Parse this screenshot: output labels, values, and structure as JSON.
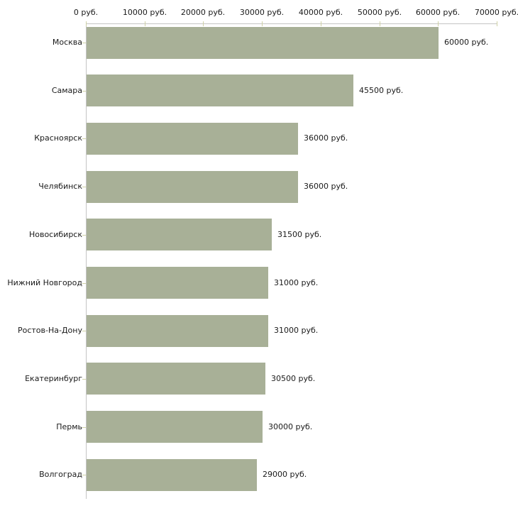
{
  "chart_data": {
    "type": "bar",
    "orientation": "horizontal",
    "title": "",
    "xlabel": "",
    "ylabel": "",
    "categories": [
      "Москва",
      "Самара",
      "Красноярск",
      "Челябинск",
      "Новосибирск",
      "Нижний Новгород",
      "Ростов-На-Дону",
      "Екатеринбург",
      "Пермь",
      "Волгоград"
    ],
    "values": [
      60000,
      45500,
      36000,
      36000,
      31500,
      31000,
      31000,
      30500,
      30000,
      29000
    ],
    "value_labels": [
      "60000 руб.",
      "45500 руб.",
      "36000 руб.",
      "36000 руб.",
      "31500 руб.",
      "31000 руб.",
      "31000 руб.",
      "30500 руб.",
      "30000 руб.",
      "29000 руб."
    ],
    "x_axis": {
      "position": "top",
      "min": 0,
      "max": 70000,
      "ticks": [
        0,
        10000,
        20000,
        30000,
        40000,
        50000,
        60000,
        70000
      ],
      "tick_labels": [
        "0 руб.",
        "10000 руб.",
        "20000 руб.",
        "30000 руб.",
        "40000 руб.",
        "50000 руб.",
        "60000 руб.",
        "70000 руб."
      ]
    },
    "legend": null,
    "grid": false,
    "colors": {
      "bar": "#a8b097",
      "axis_line": "#c4c4c4",
      "tick": "#cfd1a6",
      "text": "#1a1a1a",
      "background": "#ffffff"
    }
  }
}
